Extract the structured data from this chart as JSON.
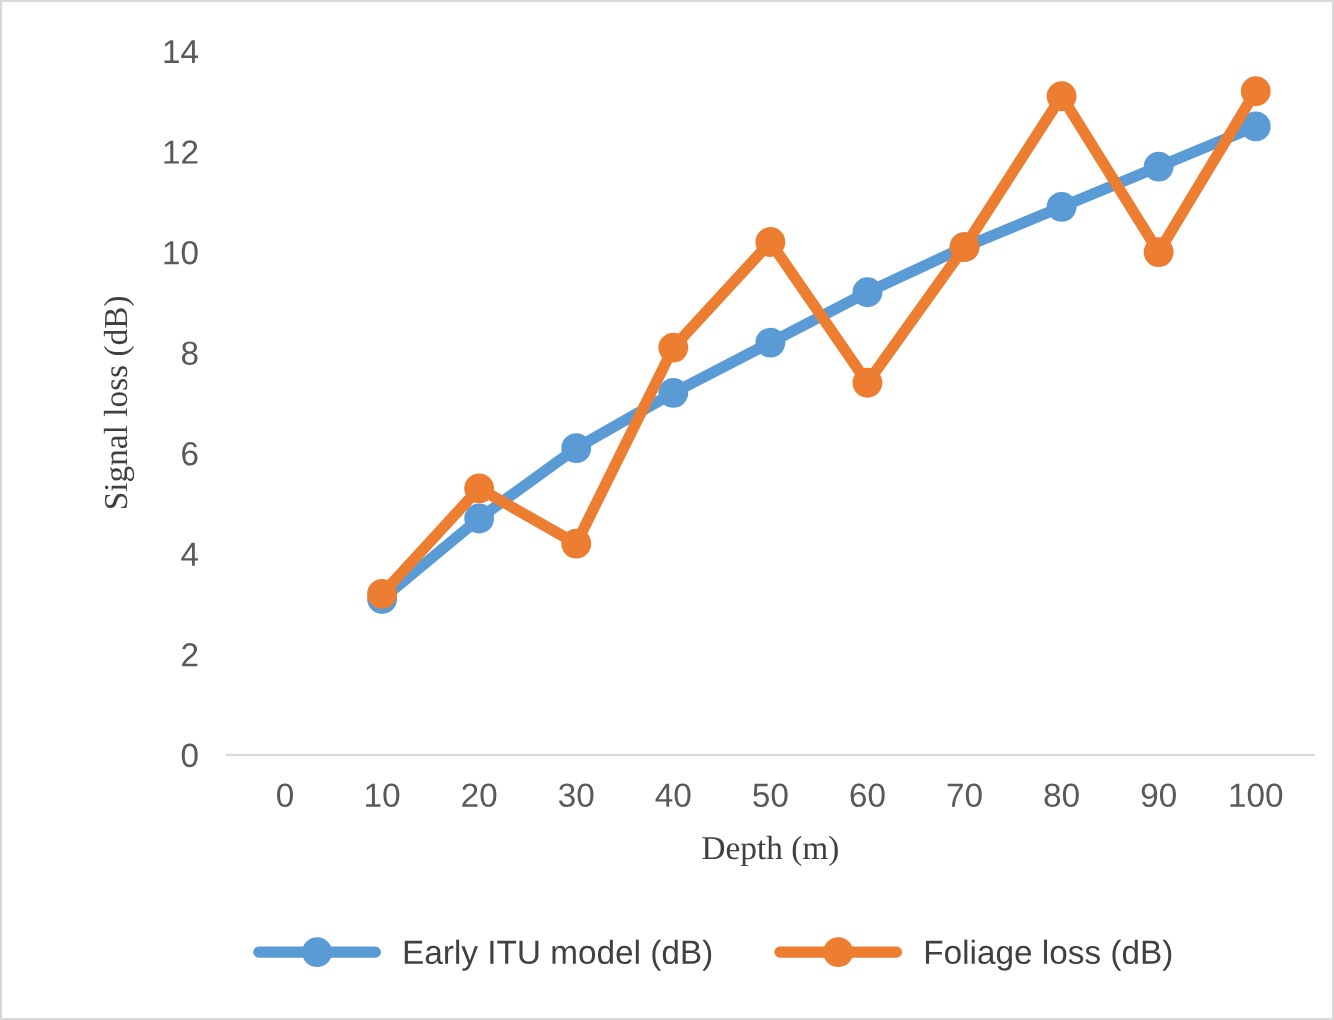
{
  "chart_data": {
    "type": "line",
    "xlabel": "Depth (m)",
    "ylabel": "Signal loss (dB)",
    "categories": [
      "0",
      "10",
      "20",
      "30",
      "40",
      "50",
      "60",
      "70",
      "80",
      "90",
      "100"
    ],
    "series": [
      {
        "name": "Early ITU model (dB)",
        "color": "#5b9bd5",
        "values": [
          null,
          3.1,
          4.7,
          6.1,
          7.2,
          8.2,
          9.2,
          10.1,
          10.9,
          11.7,
          12.5
        ]
      },
      {
        "name": "Foliage loss (dB)",
        "color": "#ed7d31",
        "values": [
          null,
          3.2,
          5.3,
          4.2,
          8.1,
          10.2,
          7.4,
          10.1,
          13.1,
          10.0,
          13.2
        ]
      }
    ],
    "ylim": [
      0,
      14
    ],
    "yticks": [
      0,
      2,
      4,
      6,
      8,
      10,
      12,
      14
    ],
    "grid": false,
    "legend": "bottom",
    "marker": "circle",
    "line_style": "solid"
  }
}
